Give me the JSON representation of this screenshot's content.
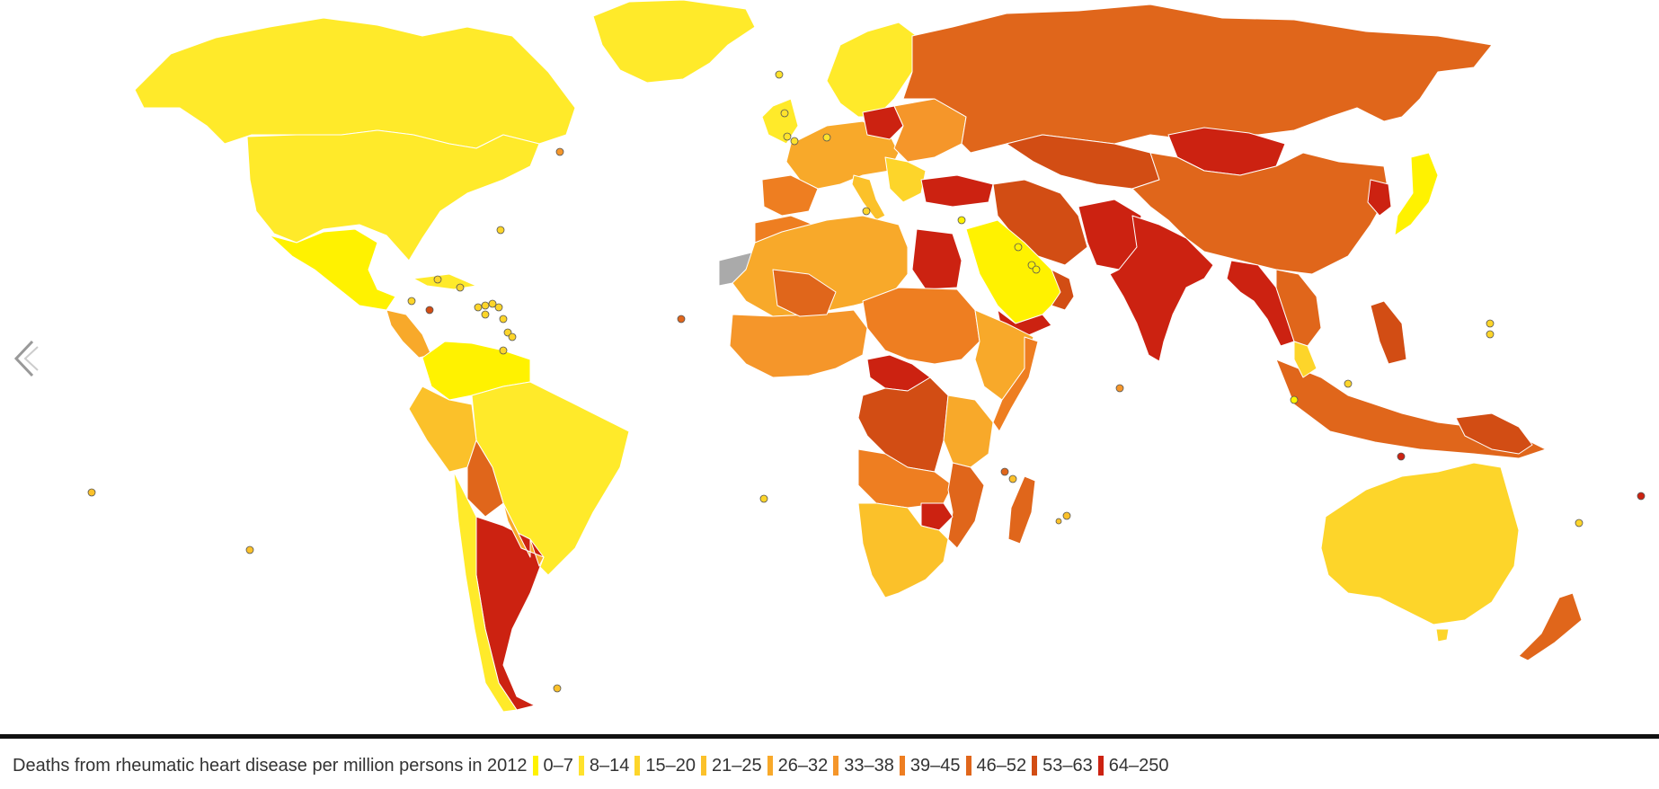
{
  "legend": {
    "title": "Deaths from rheumatic heart disease per million persons in 2012",
    "items": [
      {
        "label": "0–7",
        "color": "#fff200"
      },
      {
        "label": "8–14",
        "color": "#ffe22c"
      },
      {
        "label": "15–20",
        "color": "#fdd52a"
      },
      {
        "label": "21–25",
        "color": "#fbc12a"
      },
      {
        "label": "26–32",
        "color": "#f8a92a"
      },
      {
        "label": "33–38",
        "color": "#f5962a"
      },
      {
        "label": "39–45",
        "color": "#ee7e21"
      },
      {
        "label": "46–52",
        "color": "#e0661b"
      },
      {
        "label": "53–63",
        "color": "#d24d14"
      },
      {
        "label": "64–250",
        "color": "#cc2211"
      }
    ]
  },
  "no_data_color": "#aaaaaa",
  "navigation": {
    "prev_icon": "chevron-left-icon"
  }
}
